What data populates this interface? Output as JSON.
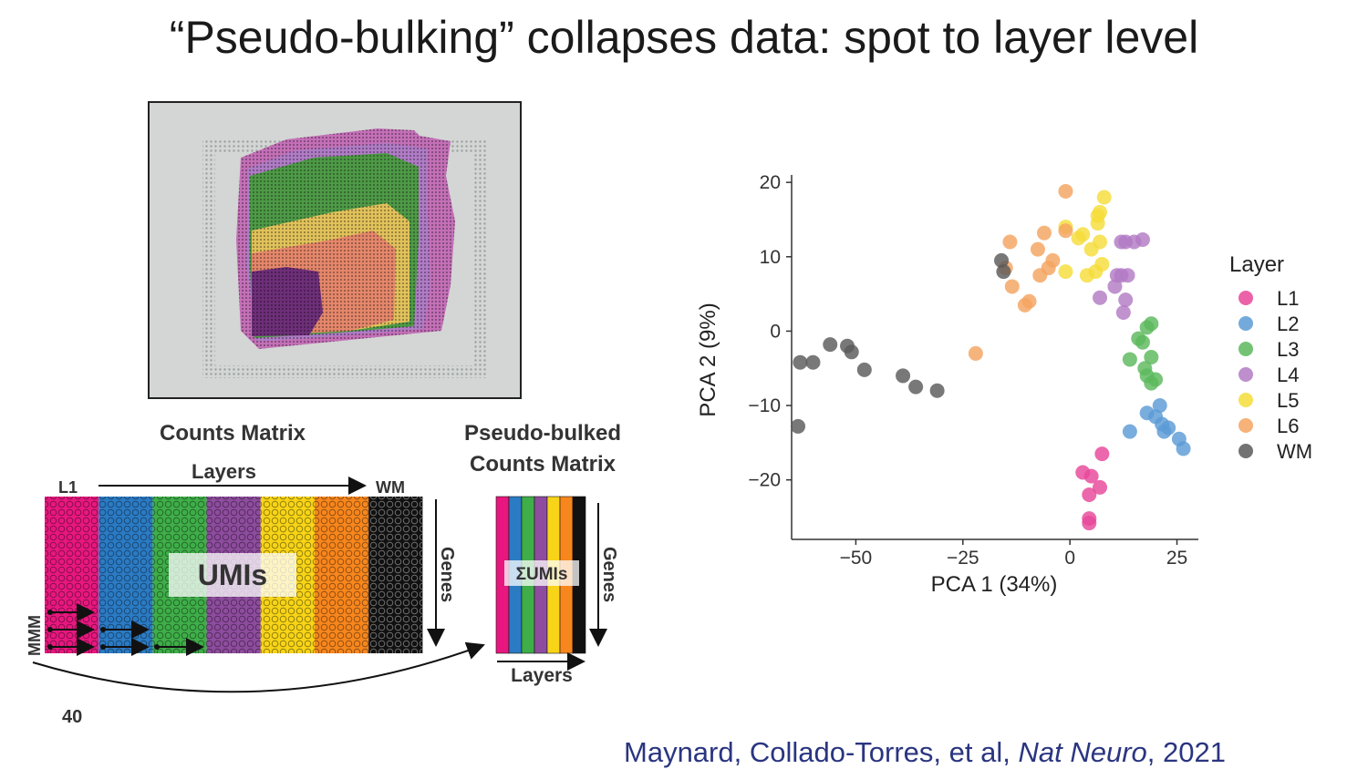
{
  "title": "“Pseudo-bulking” collapses data: spot to layer level",
  "diagram": {
    "counts_matrix_title": "Counts Matrix",
    "layers_label": "Layers",
    "first_layer_label": "L1",
    "last_layer_label": "WM",
    "umis_label": "UMIs",
    "genes_label": "Genes",
    "spot_axis_label": "MMM",
    "pseudo_title_line1": "Pseudo-bulked",
    "pseudo_title_line2": "Counts Matrix",
    "sum_umis_label": "ΣUMIs",
    "pseudo_genes_label": "Genes",
    "pseudo_layers_label": "Layers",
    "layer_colors": [
      "#e8177f",
      "#2b7bc4",
      "#3fae49",
      "#8e4c9e",
      "#f7d417",
      "#f7861d",
      "#111111"
    ]
  },
  "chart_data": {
    "type": "scatter",
    "xlabel": "PCA 1 (34%)",
    "ylabel": "PCA 2 (9%)",
    "xlim": [
      -65,
      30
    ],
    "ylim": [
      -28,
      21
    ],
    "xticks": [
      -50,
      -25,
      0,
      25
    ],
    "xtick_labels": [
      "−50",
      "−25",
      "0",
      "25"
    ],
    "yticks": [
      -20,
      -10,
      0,
      10,
      20
    ],
    "ytick_labels": [
      "−20",
      "−10",
      "0",
      "10",
      "20"
    ],
    "grid": false,
    "legend_title": "Layer",
    "legend_position": "right",
    "series": [
      {
        "name": "L1",
        "color": "#e8479a",
        "points": [
          [
            3,
            -19
          ],
          [
            5,
            -19.5
          ],
          [
            7.5,
            -16.5
          ],
          [
            7,
            -21
          ],
          [
            4.5,
            -22
          ],
          [
            4.5,
            -25.2
          ],
          [
            4.5,
            -25.8
          ]
        ]
      },
      {
        "name": "L2",
        "color": "#5b9bd5",
        "points": [
          [
            21,
            -10
          ],
          [
            18,
            -11
          ],
          [
            20,
            -11.5
          ],
          [
            14,
            -13.5
          ],
          [
            21.5,
            -12.5
          ],
          [
            23,
            -13
          ],
          [
            25.5,
            -14.5
          ],
          [
            22,
            -13.5
          ],
          [
            26.5,
            -15.8
          ]
        ]
      },
      {
        "name": "L3",
        "color": "#5cb85c",
        "points": [
          [
            19,
            1
          ],
          [
            18,
            0.5
          ],
          [
            16,
            -1
          ],
          [
            17,
            -1.5
          ],
          [
            19,
            -3.5
          ],
          [
            14,
            -3.8
          ],
          [
            17.5,
            -5
          ],
          [
            18,
            -6
          ],
          [
            20,
            -6.5
          ],
          [
            19,
            -7
          ]
        ]
      },
      {
        "name": "L4",
        "color": "#b27bc4",
        "points": [
          [
            12,
            12
          ],
          [
            13,
            12
          ],
          [
            15,
            12
          ],
          [
            17,
            12.3
          ],
          [
            11,
            7.5
          ],
          [
            12,
            7.5
          ],
          [
            13.5,
            7.5
          ],
          [
            10.5,
            6
          ],
          [
            7,
            4.5
          ],
          [
            13,
            4.2
          ],
          [
            12.5,
            2.5
          ]
        ]
      },
      {
        "name": "L5",
        "color": "#f5dd3a",
        "points": [
          [
            8,
            18
          ],
          [
            7,
            16
          ],
          [
            6.5,
            15.5
          ],
          [
            6.5,
            14.5
          ],
          [
            3,
            13
          ],
          [
            2,
            12.5
          ],
          [
            7,
            12
          ],
          [
            5,
            11
          ],
          [
            7.5,
            9
          ],
          [
            6,
            8
          ],
          [
            4,
            7.5
          ],
          [
            -1,
            8
          ],
          [
            -1,
            14
          ]
        ]
      },
      {
        "name": "L6",
        "color": "#f4a460",
        "points": [
          [
            -1,
            18.8
          ],
          [
            -14,
            12
          ],
          [
            -6,
            13.2
          ],
          [
            -1,
            13.5
          ],
          [
            -7.5,
            11
          ],
          [
            -4,
            9.5
          ],
          [
            -5,
            8.5
          ],
          [
            -15,
            8.5
          ],
          [
            -7,
            7.5
          ],
          [
            -13.5,
            6
          ],
          [
            -9.5,
            4
          ],
          [
            -10.5,
            3.5
          ],
          [
            -22,
            -3
          ]
        ]
      },
      {
        "name": "WM",
        "color": "#5a5a5a",
        "points": [
          [
            -16,
            9.5
          ],
          [
            -15.5,
            8
          ],
          [
            -56,
            -1.8
          ],
          [
            -52,
            -2
          ],
          [
            -51,
            -2.8
          ],
          [
            -63,
            -4.2
          ],
          [
            -60,
            -4.2
          ],
          [
            -48,
            -5.2
          ],
          [
            -39,
            -6
          ],
          [
            -36,
            -7.5
          ],
          [
            -31,
            -8
          ],
          [
            -63.5,
            -12.8
          ]
        ]
      }
    ]
  },
  "page_number": "40",
  "citation": {
    "authors": "Maynard, Collado-Torres, et al, ",
    "journal": "Nat Neuro",
    "year": ", 2021"
  }
}
